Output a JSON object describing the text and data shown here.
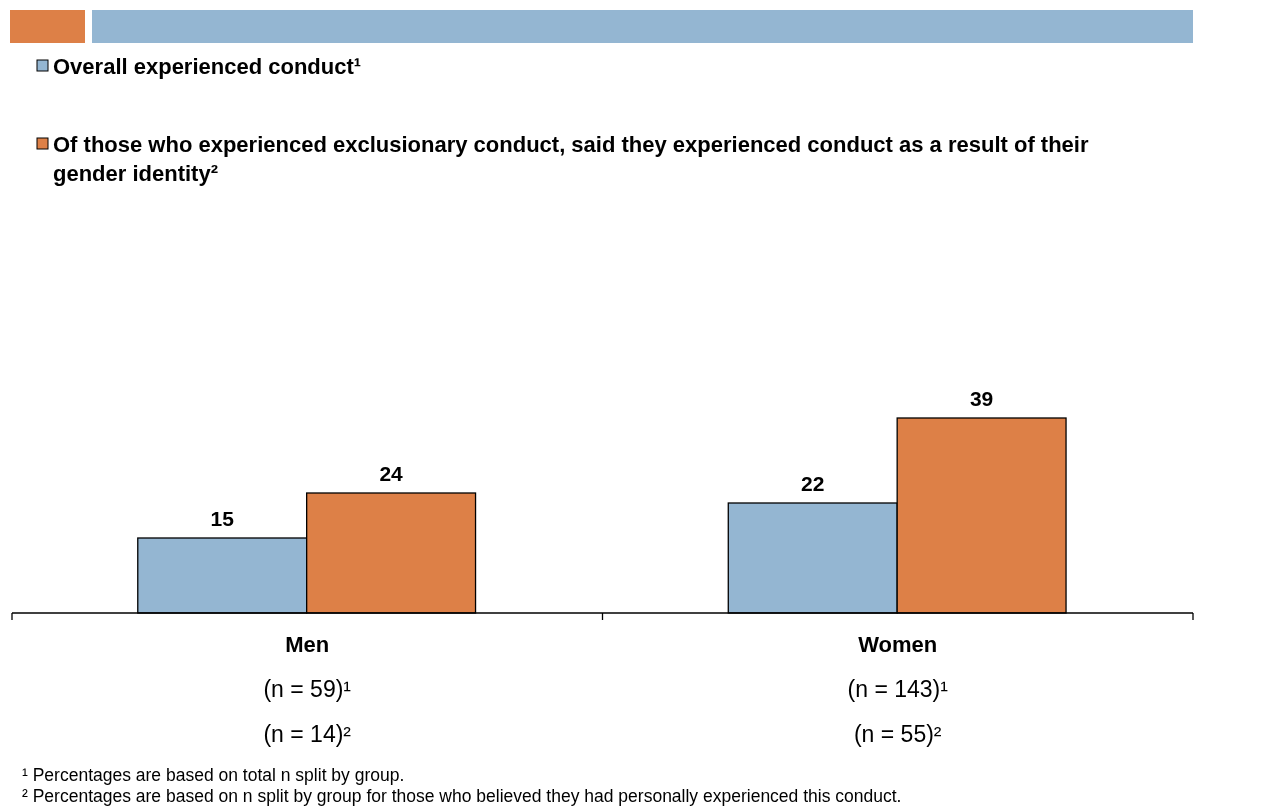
{
  "chart_data": {
    "type": "bar",
    "categories": [
      "Men\n(n = 59)¹\n(n = 14)²",
      "Women\n(n = 143)¹\n(n = 55)²"
    ],
    "series": [
      {
        "name": "Overall experienced conduct¹",
        "color": "#94b6d2",
        "values": [
          15,
          22
        ]
      },
      {
        "name": "Of those who experienced exclusionary conduct, said they experienced conduct as a result of their gender identity²",
        "color": "#dd8047",
        "values": [
          24,
          39
        ]
      }
    ],
    "data_labels": true,
    "legend": "top",
    "annotations": [
      "¹ Percentages are based on total n split by group.",
      "² Percentages are based on n split by group for those who believed they had personally experienced this conduct."
    ]
  }
}
